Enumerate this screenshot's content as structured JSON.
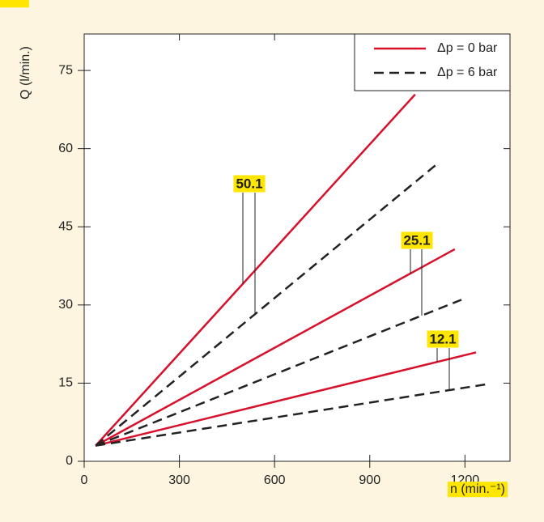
{
  "chart_data": {
    "type": "line",
    "x_label": "n (min.⁻¹)",
    "y_label": "Q (l/min.)",
    "xlim": [
      0,
      1342
    ],
    "ylim": [
      0,
      82
    ],
    "xticks": [
      0,
      300,
      600,
      900,
      1200
    ],
    "yticks": [
      0,
      15,
      30,
      45,
      60,
      75
    ],
    "legend_position": "upper right",
    "series": [
      {
        "name": "Δp = 0 bar",
        "color": "#d7102b",
        "dashed": false,
        "lines": [
          {
            "x": [
              36,
              1043
            ],
            "values": [
              3,
              70.4
            ]
          },
          {
            "x": [
              36,
              1168
            ],
            "values": [
              3,
              40.7
            ]
          },
          {
            "x": [
              36,
              1235
            ],
            "values": [
              3,
              20.9
            ]
          }
        ]
      },
      {
        "name": "Δp = 6 bar",
        "color": "#222222",
        "dashed": true,
        "lines": [
          {
            "x": [
              36,
              1115
            ],
            "values": [
              3,
              57.2
            ]
          },
          {
            "x": [
              36,
              1189
            ],
            "values": [
              3,
              31
            ]
          },
          {
            "x": [
              36,
              1270
            ],
            "values": [
              3,
              14.8
            ]
          }
        ]
      }
    ],
    "annotations": [
      "50.1",
      "25.1",
      "12.1"
    ]
  }
}
